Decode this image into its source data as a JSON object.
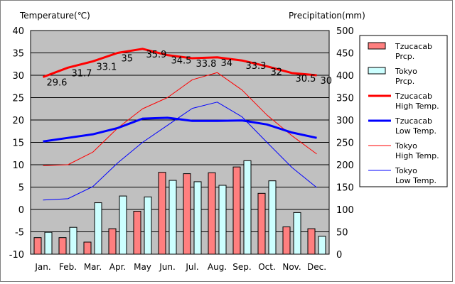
{
  "chart_data": {
    "type": "bar+line",
    "left_axis_label": "Temperature(℃)",
    "right_axis_label": "Precipitation(mm)",
    "temp_range": [
      -10,
      40
    ],
    "temp_ticks": [
      "40",
      "35",
      "30",
      "25",
      "20",
      "15",
      "10",
      "5",
      "0",
      "-5",
      "-10"
    ],
    "precip_range": [
      0,
      500
    ],
    "precip_ticks": [
      "500",
      "450",
      "400",
      "350",
      "300",
      "250",
      "200",
      "150",
      "100",
      "50",
      "0"
    ],
    "months": [
      "Jan.",
      "Feb.",
      "Mar.",
      "Apr.",
      "May",
      "Jun.",
      "Jul.",
      "Aug.",
      "Sep.",
      "Oct.",
      "Nov.",
      "Dec."
    ],
    "series": [
      {
        "name": "Tzucacab Prcp.",
        "legend": [
          "Tzucacab",
          "Prcp."
        ],
        "kind": "bar",
        "axis": "precip",
        "color": "#ff7f7f",
        "values": [
          37,
          37,
          27,
          57,
          96,
          183,
          180,
          182,
          195,
          136,
          61,
          57
        ]
      },
      {
        "name": "Tokyo Prcp.",
        "legend": [
          "Tokyo",
          "Prcp."
        ],
        "kind": "bar",
        "axis": "precip",
        "color": "#ccffff",
        "values": [
          49,
          60,
          115,
          130,
          128,
          165,
          162,
          154,
          209,
          164,
          93,
          40
        ]
      },
      {
        "name": "Tzucacab High Temp.",
        "legend": [
          "Tzucacab",
          "High Temp."
        ],
        "kind": "line",
        "axis": "temp",
        "color": "#ff0000",
        "width": 3,
        "values": [
          29.6,
          31.7,
          33.1,
          35.0,
          35.9,
          34.5,
          33.8,
          34.0,
          33.3,
          32.0,
          30.5,
          30.0
        ]
      },
      {
        "name": "Tzucacab Low Temp.",
        "legend": [
          "Tzucacab",
          "Low Temp."
        ],
        "kind": "line",
        "axis": "temp",
        "color": "#0000ff",
        "width": 3,
        "values": [
          15.2,
          16.0,
          16.8,
          18.2,
          20.3,
          20.5,
          19.8,
          19.8,
          19.9,
          19.0,
          17.2,
          16.0
        ]
      },
      {
        "name": "Tokyo High Temp.",
        "legend": [
          "Tokyo",
          "High Temp."
        ],
        "kind": "line",
        "axis": "temp",
        "color": "#ff0000",
        "width": 1,
        "values": [
          9.8,
          10.0,
          12.8,
          18.2,
          22.5,
          25.0,
          29.0,
          30.6,
          26.7,
          21.1,
          16.5,
          12.4
        ]
      },
      {
        "name": "Tokyo Low Temp.",
        "legend": [
          "Tokyo",
          "Low Temp."
        ],
        "kind": "line",
        "axis": "temp",
        "color": "#0000ff",
        "width": 1,
        "values": [
          2.1,
          2.4,
          5.1,
          10.4,
          15.0,
          18.8,
          22.6,
          24.0,
          20.7,
          15.0,
          9.4,
          4.9
        ]
      }
    ],
    "high_temp_labels": [
      "29.6",
      "31.7",
      "33.1",
      "35",
      "35.9",
      "34.5",
      "33.8",
      "34",
      "33.3",
      "32",
      "30.5",
      "30"
    ]
  }
}
